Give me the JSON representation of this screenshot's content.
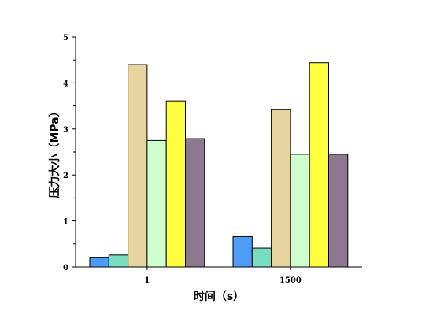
{
  "chart_data": {
    "type": "bar",
    "title": "",
    "xlabel": "时间（s）",
    "ylabel": "压力大小（MPa）",
    "categories": [
      "1",
      "1500"
    ],
    "ylim": [
      0,
      5
    ],
    "yticks": [
      "0",
      "1",
      "2",
      "3",
      "4",
      "5"
    ],
    "grid": false,
    "legend": "none",
    "series": [
      {
        "color": "#4f9cf8",
        "values": [
          0.2,
          0.66
        ]
      },
      {
        "color": "#78dcc0",
        "values": [
          0.26,
          0.41
        ]
      },
      {
        "color": "#e8d49f",
        "values": [
          4.4,
          3.42
        ]
      },
      {
        "color": "#cfffd0",
        "values": [
          2.75,
          2.45
        ]
      },
      {
        "color": "#ffff40",
        "values": [
          3.61,
          4.44
        ]
      },
      {
        "color": "#8e7890",
        "values": [
          2.79,
          2.45
        ]
      }
    ]
  }
}
